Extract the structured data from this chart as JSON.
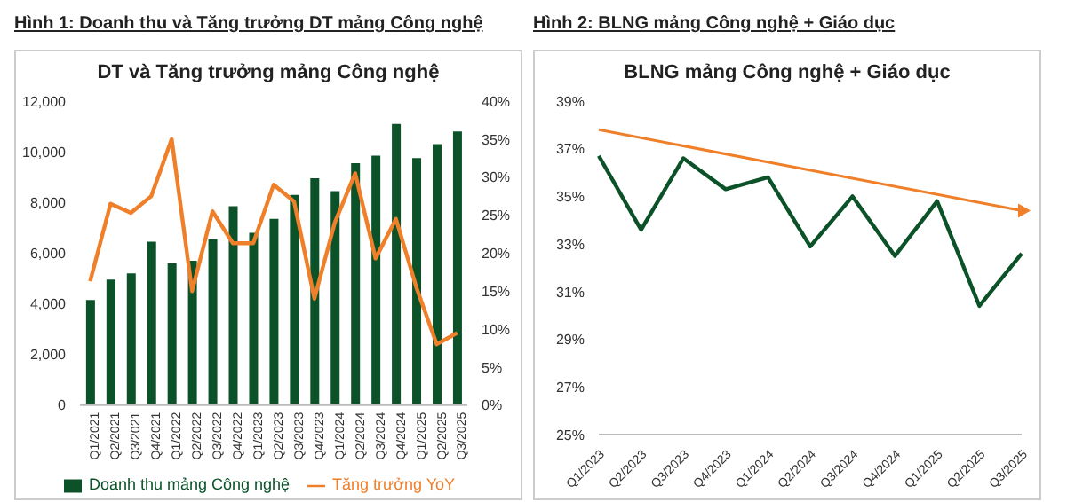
{
  "chart_data": [
    {
      "type": "bar",
      "title": "Hình 1: Doanh thu và Tăng trưởng DT mảng Công nghệ",
      "subtitle": "DT và Tăng trưởng mảng Công nghệ",
      "categories": [
        "Q1/2021",
        "Q2/2021",
        "Q3/2021",
        "Q4/2021",
        "Q1/2022",
        "Q2/2022",
        "Q3/2022",
        "Q4/2022",
        "Q1/2023",
        "Q2/2023",
        "Q3/2023",
        "Q4/2023",
        "Q1/2024",
        "Q2/2024",
        "Q3/2024",
        "Q4/2024",
        "Q1/2025",
        "Q2/2025",
        "Q3/2025"
      ],
      "series": [
        {
          "name": "Doanh thu mảng Công nghệ",
          "color": "#0b5229",
          "values": [
            4150,
            4950,
            5200,
            6450,
            5600,
            5700,
            6550,
            7850,
            6800,
            7350,
            8300,
            8950,
            8450,
            9550,
            9850,
            11100,
            9750,
            10300,
            10800
          ]
        },
        {
          "name": "Tăng trưởng YoY",
          "type": "line",
          "axis": "y2",
          "color": "#f07f2a",
          "values": [
            16.3,
            26.5,
            25.3,
            27.5,
            35,
            15,
            25.5,
            21.3,
            21.3,
            29,
            26.8,
            14,
            24,
            30.5,
            19.3,
            24.5,
            15.5,
            8,
            9.5
          ]
        }
      ],
      "ylim": [
        0,
        12000
      ],
      "yticks": [
        {
          "value": 0,
          "label": "0"
        },
        {
          "value": 2000,
          "label": "2,000"
        },
        {
          "value": 4000,
          "label": "4,000"
        },
        {
          "value": 6000,
          "label": "6,000"
        },
        {
          "value": 8000,
          "label": "8,000"
        },
        {
          "value": 10000,
          "label": "10,000"
        },
        {
          "value": 12000,
          "label": "12,000"
        }
      ],
      "y2lim": [
        0,
        40
      ],
      "y2ticks": [
        {
          "value": 0,
          "label": "0%"
        },
        {
          "value": 5,
          "label": "5%"
        },
        {
          "value": 10,
          "label": "10%"
        },
        {
          "value": 15,
          "label": "15%"
        },
        {
          "value": 20,
          "label": "20%"
        },
        {
          "value": 25,
          "label": "25%"
        },
        {
          "value": 30,
          "label": "30%"
        },
        {
          "value": 35,
          "label": "35%"
        },
        {
          "value": 40,
          "label": "40%"
        }
      ],
      "legend": "bottom",
      "grid": false,
      "marker": "none"
    },
    {
      "type": "line",
      "title": "Hình 2: BLNG mảng Công nghệ + Giáo dục",
      "subtitle": "BLNG mảng Công nghệ + Giáo dục",
      "categories": [
        "Q1/2023",
        "Q2/2023",
        "Q3/2023",
        "Q4/2023",
        "Q1/2024",
        "Q2/2024",
        "Q3/2024",
        "Q4/2024",
        "Q1/2025",
        "Q2/2025",
        "Q3/2025"
      ],
      "series": [
        {
          "color": "#0b5229",
          "values": [
            36.7,
            33.6,
            36.6,
            35.3,
            35.8,
            32.9,
            35.0,
            32.5,
            34.8,
            30.4,
            32.6
          ]
        },
        {
          "color": "#f07f2a",
          "x": [
            "Q1/2023",
            "Q3/2025"
          ],
          "values": [
            37.8,
            34.4
          ]
        }
      ],
      "ylim": [
        25,
        39
      ],
      "yticks": [
        {
          "value": 25,
          "label": "25%"
        },
        {
          "value": 27,
          "label": "27%"
        },
        {
          "value": 29,
          "label": "29%"
        },
        {
          "value": 31,
          "label": "31%"
        },
        {
          "value": 33,
          "label": "33%"
        },
        {
          "value": 35,
          "label": "35%"
        },
        {
          "value": 37,
          "label": "37%"
        },
        {
          "value": 39,
          "label": "39%"
        }
      ],
      "legend": false,
      "grid": false
    }
  ]
}
